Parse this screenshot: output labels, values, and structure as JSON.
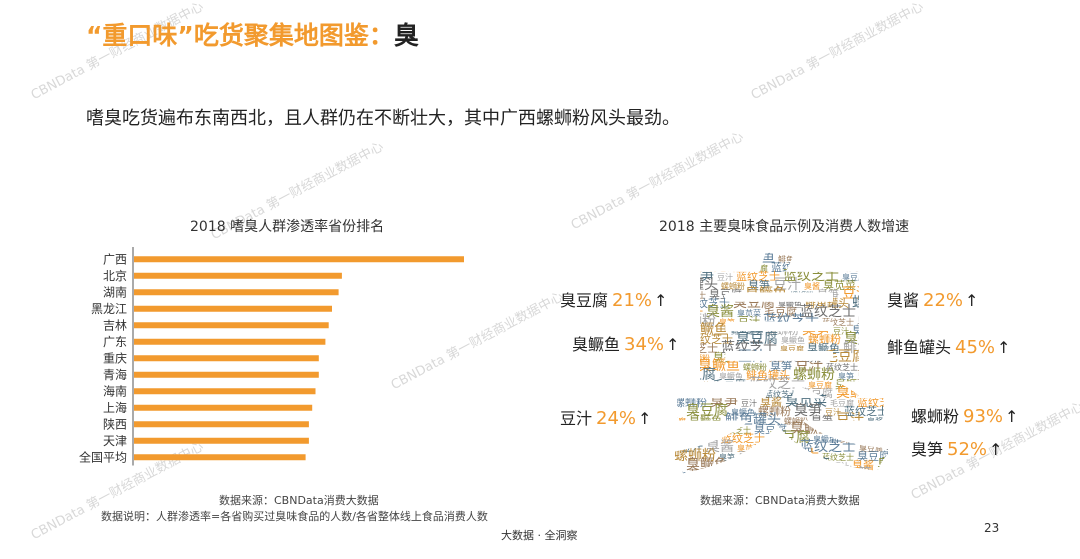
{
  "header": {
    "title_part1": "“重口味”吃货聚集地图鉴：",
    "title_part2": "臭"
  },
  "subtitle": "嗜臭吃货遍布东南西北，且人群仍在不断壮大，其中广西螺蛳粉风头最劲。",
  "left_chart": {
    "source": "数据来源：CBNData消费大数据",
    "note": "数据说明：人群渗透率=各省购买过臭味食品的人数/各省整体线上食品消费人数"
  },
  "right_chart": {
    "title": "2018 主要臭味食品示例及消费人数增速",
    "source": "数据来源：CBNData消费大数据",
    "foods": [
      {
        "name": "臭豆腐",
        "growth": "21%",
        "arrow": "↑"
      },
      {
        "name": "臭鳜鱼",
        "growth": "34%",
        "arrow": "↑"
      },
      {
        "name": "豆汁",
        "growth": "24%",
        "arrow": "↑"
      },
      {
        "name": "臭酱",
        "growth": "22%",
        "arrow": "↑"
      },
      {
        "name": "鲱鱼罐头",
        "growth": "45%",
        "arrow": "↑"
      },
      {
        "name": "螺蛳粉",
        "growth": "93%",
        "arrow": "↑"
      },
      {
        "name": "臭笋",
        "growth": "52%",
        "arrow": "↑"
      }
    ],
    "cloud_glyph": "臭",
    "cloud_words": [
      "蓝纹芝士",
      "臭豆腐",
      "臭鳜鱼",
      "鲱鱼罐头",
      "螺蛳粉",
      "臭笋",
      "豆汁",
      "臭酱",
      "臭苋菜",
      "毛豆腐",
      "蓝纹芝士",
      "臭豆腐",
      "臭鳜鱼",
      "螺蛳粉",
      "臭笋",
      "豆汁",
      "蓝纹芝士"
    ]
  },
  "footer": {
    "brand": "大数据 · 全洞察",
    "page_number": "23"
  },
  "watermark_text": "CBNData 第一财经商业数据中心",
  "colors": {
    "accent": "#f29a2e",
    "text": "#222222"
  },
  "chart_data": {
    "type": "bar",
    "orientation": "horizontal",
    "title": "2018 嗜臭人群渗透率省份排名",
    "categories": [
      "广西",
      "北京",
      "湖南",
      "黑龙江",
      "吉林",
      "广东",
      "重庆",
      "青海",
      "海南",
      "上海",
      "陕西",
      "天津",
      "全国平均"
    ],
    "values": [
      100,
      63,
      62,
      60,
      59,
      58,
      56,
      56,
      55,
      54,
      53,
      53,
      52
    ],
    "xlabel": "",
    "ylabel": "",
    "xlim": [
      0,
      100
    ],
    "grid": false,
    "legend": "none",
    "bar_color": "#f29a2e"
  }
}
